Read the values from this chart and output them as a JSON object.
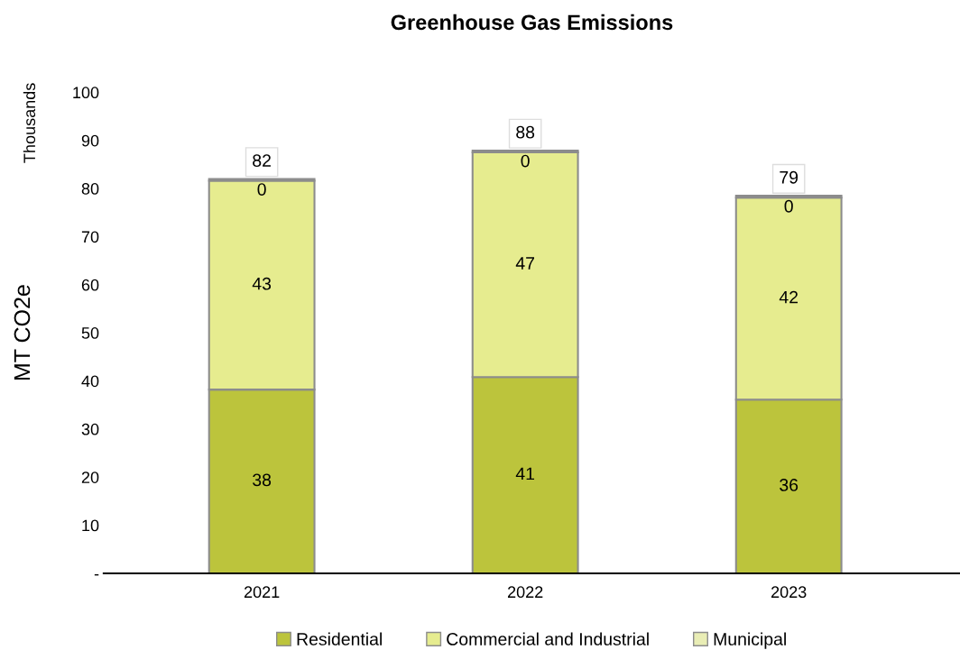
{
  "chart_data": {
    "type": "bar",
    "title": "Greenhouse Gas Emissions",
    "ylabel": "MT CO2e",
    "annotations": [
      "Thousands"
    ],
    "categories": [
      "2021",
      "2022",
      "2023"
    ],
    "stacked": true,
    "series": [
      {
        "name": "Residential",
        "color": "#bcc43c",
        "values": [
          38.2,
          40.8,
          36.1
        ],
        "value_labels": [
          "38",
          "41",
          "36"
        ]
      },
      {
        "name": "Commercial and Industrial",
        "color": "#e6ec8f",
        "values": [
          43.4,
          46.7,
          42.0
        ],
        "value_labels": [
          "43",
          "47",
          "42"
        ]
      },
      {
        "name": "Municipal",
        "color": "#e9edb5",
        "values": [
          0.4,
          0.4,
          0.4
        ],
        "value_labels": [
          "0",
          "0",
          "0"
        ]
      }
    ],
    "totals": [
      "82",
      "88",
      "79"
    ],
    "ylim": [
      0,
      100
    ],
    "yticks": [
      {
        "value": 0,
        "label": "-"
      },
      10,
      20,
      30,
      40,
      50,
      60,
      70,
      80,
      90,
      100
    ],
    "grid": false,
    "legend": "bottom"
  }
}
